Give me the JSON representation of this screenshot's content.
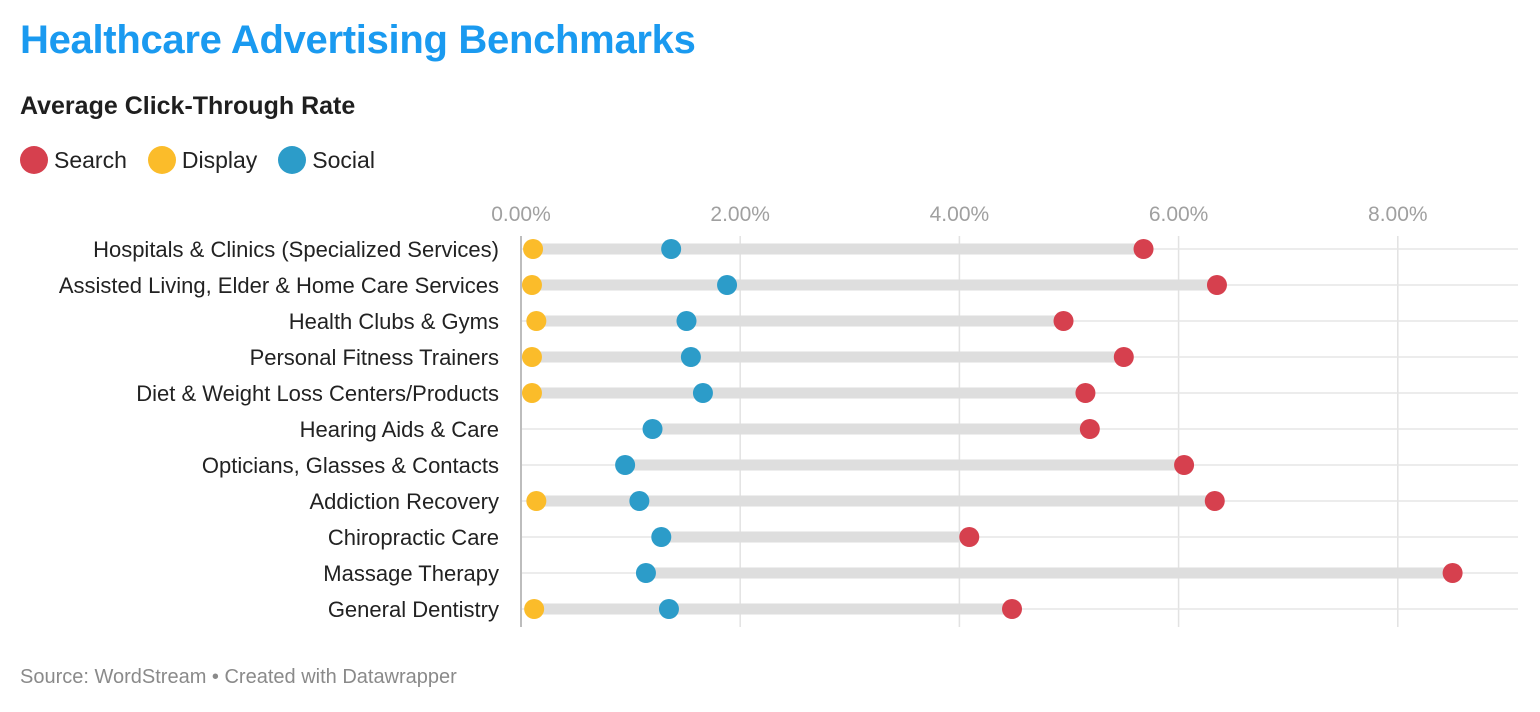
{
  "header": {
    "title": "Healthcare Advertising Benchmarks",
    "subtitle": "Average Click-Through Rate"
  },
  "legend": [
    {
      "label": "Search",
      "color": "#d6404e"
    },
    {
      "label": "Display",
      "color": "#fbbc2a"
    },
    {
      "label": "Social",
      "color": "#2c9cc9"
    }
  ],
  "footer": {
    "source": "Source: WordStream • Created with Datawrapper"
  },
  "chart_data": {
    "type": "scatter",
    "subtype": "dot-range",
    "x_axis": {
      "min": 0,
      "max": 9.0,
      "ticks": [
        0,
        2,
        4,
        6,
        8
      ],
      "tick_labels": [
        "0.00%",
        "2.00%",
        "4.00%",
        "6.00%",
        "8.00%"
      ],
      "position": "top",
      "grid": true
    },
    "categories": [
      "Hospitals & Clinics (Specialized Services)",
      "Assisted Living, Elder & Home Care Services",
      "Health Clubs & Gyms",
      "Personal Fitness Trainers",
      "Diet & Weight Loss Centers/Products",
      "Hearing Aids & Care",
      "Opticians, Glasses & Contacts",
      "Addiction Recovery",
      "Chiropractic Care",
      "Massage Therapy",
      "General Dentistry"
    ],
    "series": [
      {
        "name": "Search",
        "color": "#d6404e",
        "values": [
          5.68,
          6.35,
          4.95,
          5.5,
          5.15,
          5.19,
          6.05,
          6.33,
          4.09,
          8.5,
          4.48
        ]
      },
      {
        "name": "Display",
        "color": "#fbbc2a",
        "values": [
          0.11,
          0.1,
          0.14,
          0.1,
          0.1,
          null,
          null,
          0.14,
          null,
          null,
          0.12
        ]
      },
      {
        "name": "Social",
        "color": "#2c9cc9",
        "values": [
          1.37,
          1.88,
          1.51,
          1.55,
          1.66,
          1.2,
          0.95,
          1.08,
          1.28,
          1.14,
          1.35
        ]
      }
    ]
  }
}
